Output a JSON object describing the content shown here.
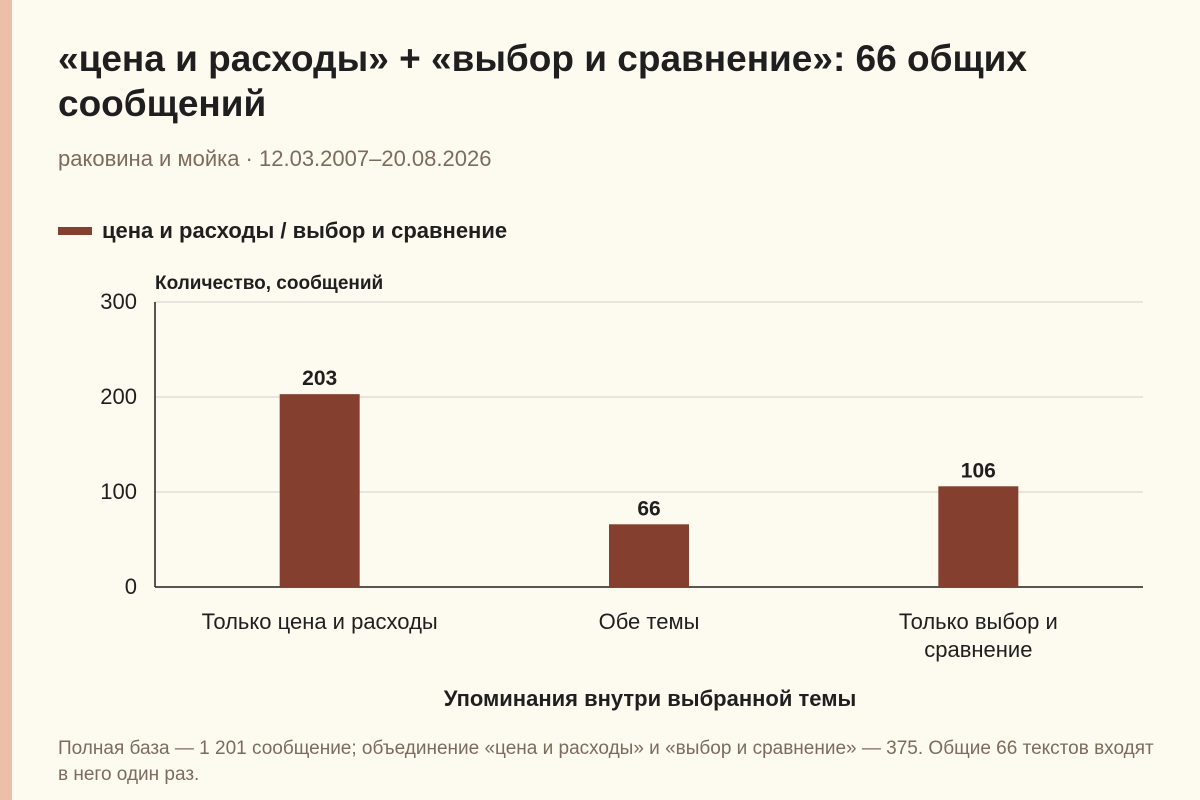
{
  "title": "«цена и расходы» + «выбор и сравнение»: 66 общих сообщений",
  "subtitle": "раковина и мойка · 12.03.2007–20.08.2026",
  "footnote": "Полная база — 1 201 сообщение; объединение «цена и расходы» и «выбор и сравнение» — 375. Общие 66 текстов входят в него один раз.",
  "colors": {
    "bar": "#843f2f",
    "grid": "#d4d0c8",
    "axis": "#1f1f1f",
    "background": "#fdfaf0"
  },
  "chart_data": {
    "type": "bar",
    "title": "«цена и расходы» + «выбор и сравнение»: 66 общих сообщений",
    "xlabel": "Упоминания внутри выбранной темы",
    "ylabel": "Количество, сообщений",
    "categories": [
      [
        "Только цена и расходы"
      ],
      [
        "Обе темы"
      ],
      [
        "Только выбор и",
        "сравнение"
      ]
    ],
    "series": [
      {
        "name": "цена и расходы / выбор и сравнение",
        "values": [
          203,
          66,
          106
        ]
      }
    ],
    "ylim": [
      0,
      300
    ],
    "yticks": [
      0,
      100,
      200,
      300
    ],
    "data_labels": true,
    "grid": true,
    "legend": "top-left"
  }
}
